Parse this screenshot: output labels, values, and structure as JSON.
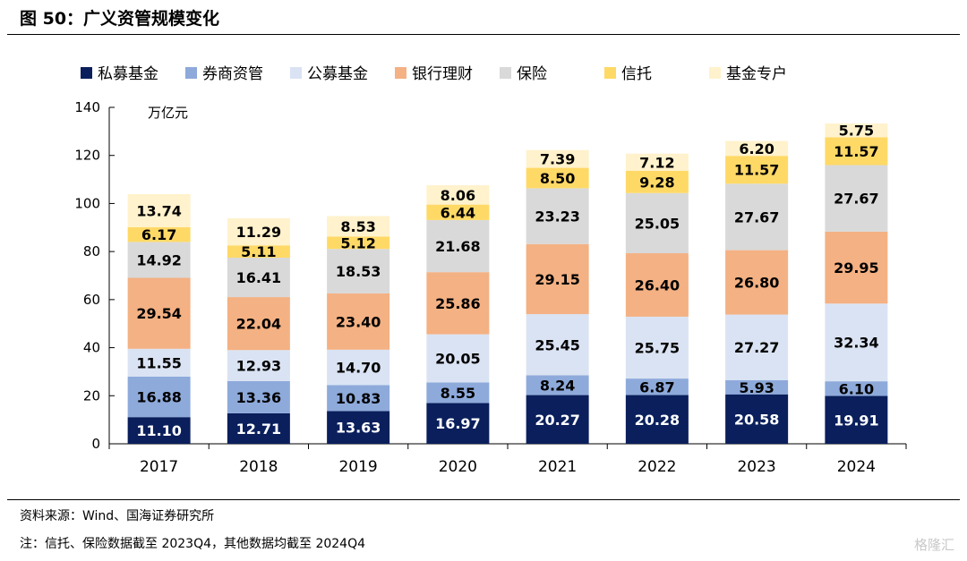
{
  "figure": {
    "title": "图 50：广义资管规模变化",
    "source": "资料来源：Wind、国海证券研究所",
    "note": "注：信托、保险数据截至 2023Q4，其他数据均截至 2024Q4",
    "watermark": "格隆汇"
  },
  "chart_data": {
    "type": "bar",
    "stacked": true,
    "title": "",
    "xlabel": "",
    "ylabel": "万亿元",
    "ylim": [
      0,
      140
    ],
    "yticks": [
      0,
      20,
      40,
      60,
      80,
      100,
      120,
      140
    ],
    "grid": false,
    "legend_position": "top",
    "categories": [
      "2017",
      "2018",
      "2019",
      "2020",
      "2021",
      "2022",
      "2023",
      "2024"
    ],
    "series": [
      {
        "name": "私募基金",
        "color": "#0a1f5c",
        "label_color": "#ffffff",
        "values": [
          11.1,
          12.71,
          13.63,
          16.97,
          20.27,
          20.28,
          20.58,
          19.91
        ]
      },
      {
        "name": "券商资管",
        "color": "#8eaadb",
        "label_color": "#000000",
        "values": [
          16.88,
          13.36,
          10.83,
          8.55,
          8.24,
          6.87,
          5.93,
          6.1
        ]
      },
      {
        "name": "公募基金",
        "color": "#dae3f3",
        "label_color": "#000000",
        "values": [
          11.55,
          12.93,
          14.7,
          20.05,
          25.45,
          25.75,
          27.27,
          32.34
        ]
      },
      {
        "name": "银行理财",
        "color": "#f4b183",
        "label_color": "#000000",
        "values": [
          29.54,
          22.04,
          23.4,
          25.86,
          29.15,
          26.4,
          26.8,
          29.95
        ]
      },
      {
        "name": "保险",
        "color": "#d9d9d9",
        "label_color": "#000000",
        "values": [
          14.92,
          16.41,
          18.53,
          21.68,
          23.23,
          25.05,
          27.67,
          27.67
        ]
      },
      {
        "name": "信托",
        "color": "#ffd966",
        "label_color": "#000000",
        "values": [
          6.17,
          5.11,
          5.12,
          6.44,
          8.5,
          9.28,
          11.57,
          11.57
        ]
      },
      {
        "name": "基金专户",
        "color": "#fff2cc",
        "label_color": "#000000",
        "values": [
          13.74,
          11.29,
          8.53,
          8.06,
          7.39,
          7.12,
          6.2,
          5.75
        ]
      }
    ]
  }
}
